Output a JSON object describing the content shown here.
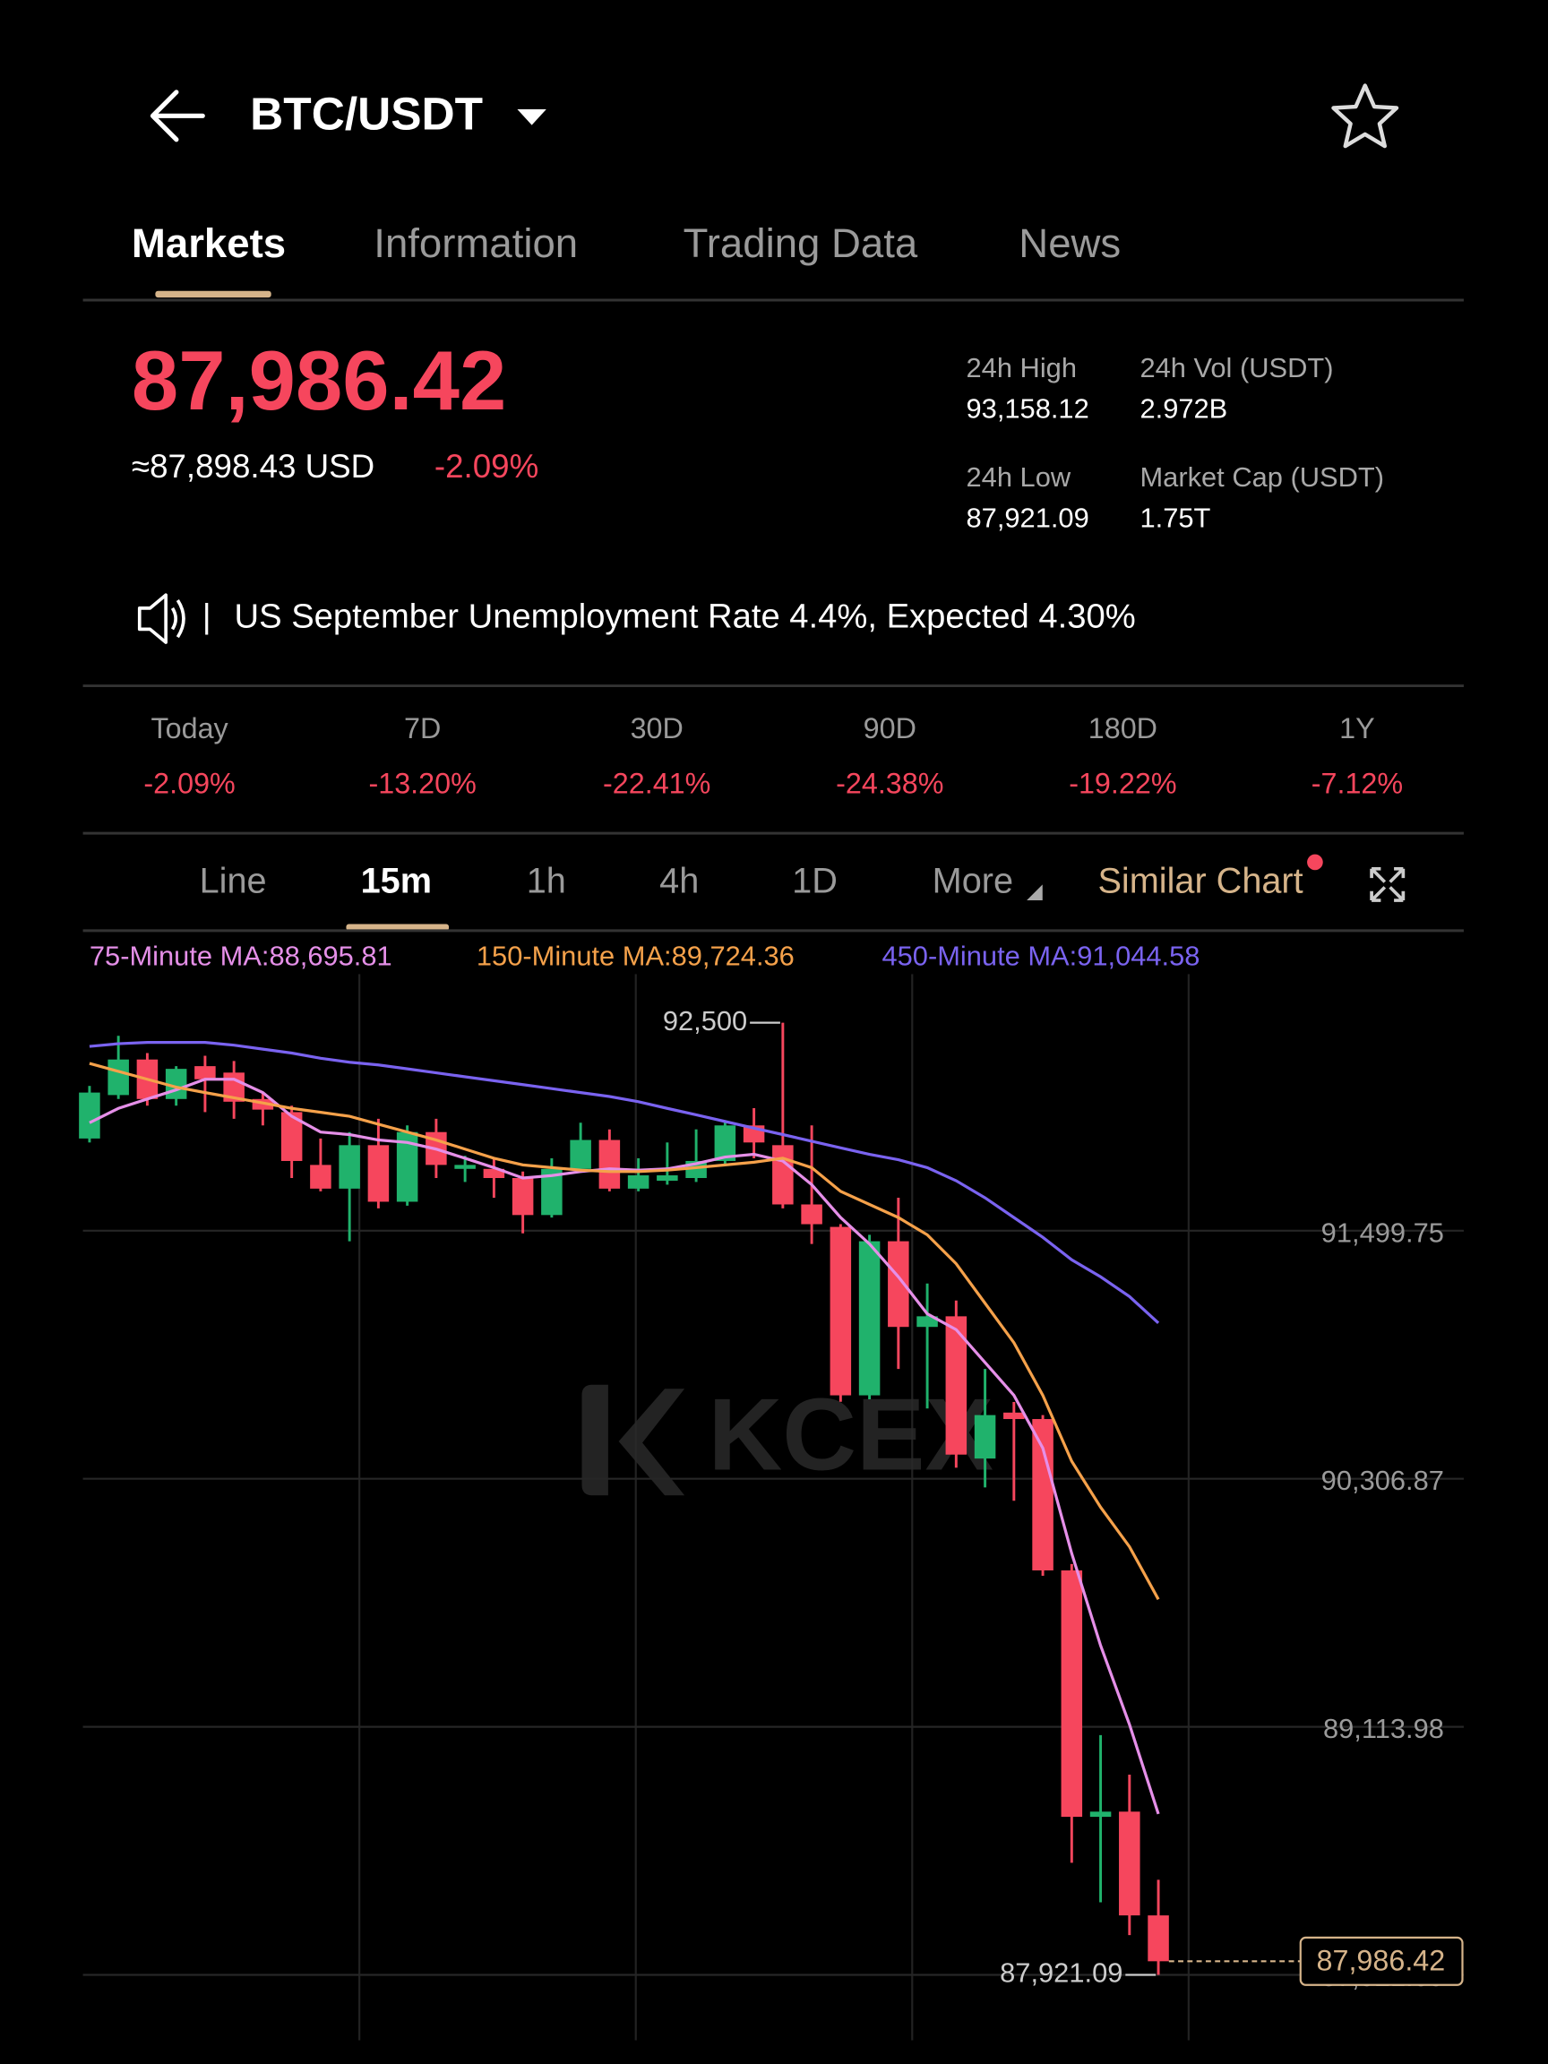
{
  "header": {
    "title": "BTC/USDT"
  },
  "tabs": [
    "Markets",
    "Information",
    "Trading Data",
    "News"
  ],
  "price": {
    "last": "87,986.42",
    "usd": "≈87,898.43 USD",
    "change": "-2.09%"
  },
  "stats": [
    {
      "label": "24h High",
      "value": "93,158.12"
    },
    {
      "label": "24h Vol (USDT)",
      "value": "2.972B"
    },
    {
      "label": "24h Low",
      "value": "87,921.09"
    },
    {
      "label": "Market Cap (USDT)",
      "value": "1.75T"
    }
  ],
  "news": {
    "separator": "|",
    "text": "US September Unemployment Rate 4.4%, Expected 4.30%"
  },
  "periods": [
    {
      "label": "Today",
      "change": "-2.09%"
    },
    {
      "label": "7D",
      "change": "-13.20%"
    },
    {
      "label": "30D",
      "change": "-22.41%"
    },
    {
      "label": "90D",
      "change": "-24.38%"
    },
    {
      "label": "180D",
      "change": "-19.22%"
    },
    {
      "label": "1Y",
      "change": "-7.12%"
    }
  ],
  "intervals": [
    "Line",
    "15m",
    "1h",
    "4h",
    "1D",
    "More",
    "Similar Chart"
  ],
  "chart_data": {
    "type": "candlestick",
    "up_color": "#20b26c",
    "down_color": "#f6465d",
    "open": [
      91943,
      92152,
      92323,
      92133,
      92291,
      92260,
      92133,
      92070,
      91816,
      91702,
      91911,
      91639,
      91974,
      91797,
      91797,
      91753,
      91575,
      91797,
      91936,
      91702,
      91740,
      91753,
      91835,
      92006,
      91911,
      91626,
      91518,
      90708,
      91449,
      91037,
      91088,
      90404,
      90625,
      90594,
      89866,
      88681,
      88706,
      88207
    ],
    "high": [
      92196,
      92437,
      92354,
      92291,
      92341,
      92316,
      92164,
      92101,
      91943,
      91974,
      92038,
      92006,
      92038,
      91860,
      91848,
      91784,
      91848,
      92019,
      91987,
      91848,
      91924,
      91987,
      92025,
      92089,
      92500,
      92006,
      91531,
      91480,
      91658,
      91246,
      91164,
      90835,
      90676,
      90613,
      89897,
      89074,
      88884,
      88378
    ],
    "low": [
      91924,
      92133,
      92101,
      92101,
      92070,
      92038,
      92006,
      91753,
      91689,
      91449,
      91607,
      91620,
      91753,
      91734,
      91658,
      91487,
      91563,
      91784,
      91689,
      91689,
      91721,
      91734,
      91816,
      91848,
      91607,
      91436,
      90677,
      90689,
      90835,
      90645,
      90360,
      90265,
      90201,
      89840,
      88460,
      88270,
      88112,
      87921.09
    ],
    "close": [
      92164,
      92323,
      92133,
      92278,
      92228,
      92120,
      92082,
      91835,
      91702,
      91911,
      91639,
      91974,
      91816,
      91816,
      91753,
      91575,
      91797,
      91936,
      91702,
      91766,
      91766,
      91835,
      92006,
      91924,
      91626,
      91531,
      90708,
      91449,
      91037,
      91088,
      90423,
      90613,
      90594,
      89866,
      88681,
      88706,
      88207,
      87986.42
    ],
    "series": [
      {
        "name": "75-Minute MA:",
        "color": "#e58fe8",
        "current": {
          "value": 88695.81,
          "label": "88,695.81"
        },
        "values": [
          92019,
          92088,
          92133,
          92177,
          92228,
          92228,
          92164,
          92050,
          91974,
          91962,
          91936,
          91924,
          91892,
          91848,
          91803,
          91753,
          91765,
          91784,
          91797,
          91791,
          91797,
          91822,
          91854,
          91867,
          91835,
          91721,
          91563,
          91436,
          91278,
          91100,
          91024,
          90866,
          90708,
          90454,
          89948,
          89505,
          89125,
          88695
        ]
      },
      {
        "name": "150-Minute MA:",
        "color": "#f5a14a",
        "current": {
          "value": 89724.36,
          "label": "89,724.36"
        },
        "values": [
          92304,
          92266,
          92228,
          92190,
          92164,
          92139,
          92114,
          92088,
          92069,
          92050,
          92012,
          91974,
          91936,
          91892,
          91848,
          91816,
          91803,
          91791,
          91784,
          91784,
          91791,
          91803,
          91816,
          91829,
          91848,
          91803,
          91689,
          91626,
          91563,
          91480,
          91341,
          91151,
          90961,
          90708,
          90391,
          90170,
          89980,
          89727
        ]
      },
      {
        "name": "450-Minute MA:",
        "color": "#7a63f0",
        "current": {
          "value": 91044.58,
          "label": "91,044.58"
        },
        "values": [
          92386,
          92399,
          92405,
          92405,
          92405,
          92392,
          92373,
          92354,
          92329,
          92310,
          92297,
          92278,
          92259,
          92240,
          92221,
          92202,
          92183,
          92164,
          92145,
          92120,
          92088,
          92057,
          92025,
          91993,
          91962,
          91930,
          91898,
          91867,
          91841,
          91803,
          91740,
          91658,
          91563,
          91468,
          91360,
          91278,
          91183,
          91056
        ]
      }
    ],
    "ylim": [
      87600,
      92930
    ],
    "yticks": [
      {
        "value": 91499.75,
        "label": "91,499.75"
      },
      {
        "value": 90306.87,
        "label": "90,306.87"
      },
      {
        "value": 89113.98,
        "label": "89,113.98"
      },
      {
        "value": 87921.09,
        "label": "87,921.09"
      }
    ],
    "grid": true,
    "high_marker": {
      "value": 92500,
      "label": "92,500"
    },
    "low_marker": {
      "value": 87921.09,
      "label": "87,921.09"
    },
    "last_price": {
      "value": 87986.42,
      "label": "87,986.42"
    },
    "watermark": "KCEX"
  }
}
